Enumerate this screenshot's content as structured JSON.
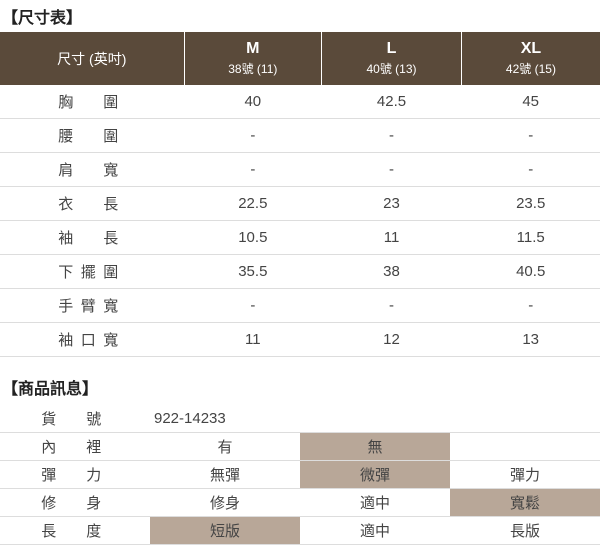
{
  "sections": {
    "size_title": "【尺寸表】",
    "info_title": "【商品訊息】"
  },
  "size_table": {
    "header_label": "尺寸 (英吋)",
    "columns": [
      {
        "main": "M",
        "sub": "38號 (11)"
      },
      {
        "main": "L",
        "sub": "40號 (13)"
      },
      {
        "main": "XL",
        "sub": "42號 (15)"
      }
    ],
    "rows": [
      {
        "label": "胸　圍",
        "vals": [
          "40",
          "42.5",
          "45"
        ]
      },
      {
        "label": "腰　圍",
        "vals": [
          "-",
          "-",
          "-"
        ]
      },
      {
        "label": "肩　寬",
        "vals": [
          "-",
          "-",
          "-"
        ]
      },
      {
        "label": "衣　長",
        "vals": [
          "22.5",
          "23",
          "23.5"
        ]
      },
      {
        "label": "袖　長",
        "vals": [
          "10.5",
          "11",
          "11.5"
        ]
      },
      {
        "label": "下擺圍",
        "vals": [
          "35.5",
          "38",
          "40.5"
        ]
      },
      {
        "label": "手臂寬",
        "vals": [
          "-",
          "-",
          "-"
        ]
      },
      {
        "label": "袖口寬",
        "vals": [
          "11",
          "12",
          "13"
        ]
      }
    ]
  },
  "info_table": {
    "rows": [
      {
        "label": "貨　號",
        "vals": [
          "922-14233"
        ],
        "colspan": 3,
        "hl": []
      },
      {
        "label": "內　裡",
        "vals": [
          "有",
          "無",
          ""
        ],
        "hl": [
          1
        ]
      },
      {
        "label": "彈　力",
        "vals": [
          "無彈",
          "微彈",
          "彈力"
        ],
        "hl": [
          1
        ]
      },
      {
        "label": "修　身",
        "vals": [
          "修身",
          "適中",
          "寬鬆"
        ],
        "hl": [
          2
        ]
      },
      {
        "label": "長　度",
        "vals": [
          "短版",
          "適中",
          "長版"
        ],
        "hl": [
          0
        ]
      }
    ]
  },
  "colors": {
    "header_bg": "#5a4a3a",
    "highlight_bg": "#b8a798",
    "border": "#dddddd",
    "text": "#444444"
  }
}
